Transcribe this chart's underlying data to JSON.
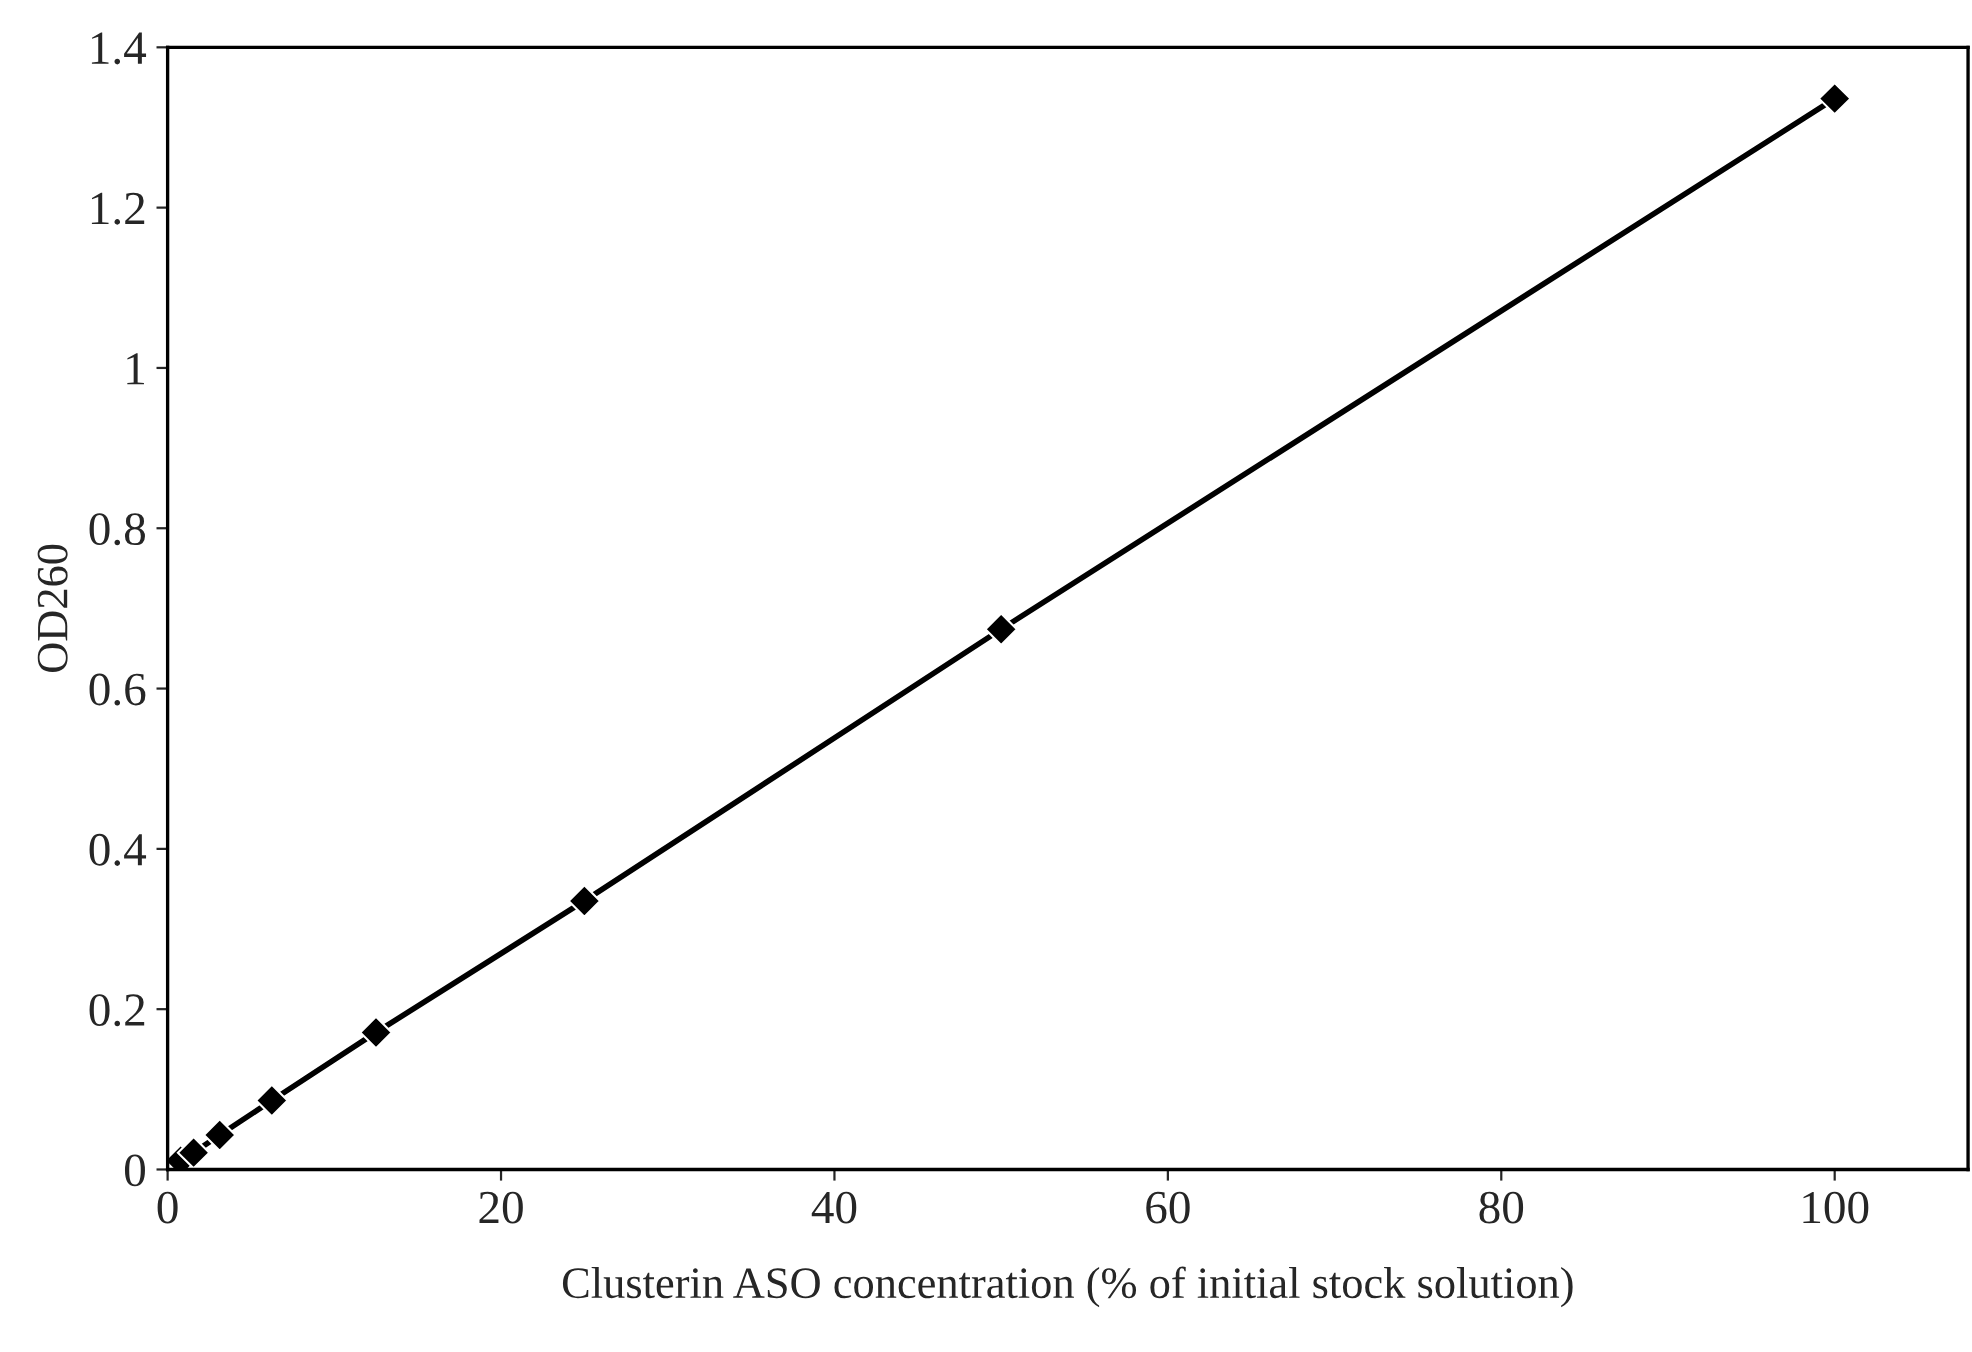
{
  "chart_data": {
    "type": "line",
    "xlabel": "Clusterin ASO concentration (% of initial stock solution)",
    "ylabel": "OD260",
    "x": [
      0.78,
      1.56,
      3.125,
      6.25,
      12.5,
      25,
      50,
      100
    ],
    "series": [
      {
        "color": "#000000",
        "values": [
          0.011,
          0.021,
          0.043,
          0.086,
          0.171,
          0.335,
          0.674,
          1.336
        ]
      }
    ],
    "xlim": [
      0,
      108
    ],
    "xticks": [
      0,
      20,
      40,
      60,
      80,
      100
    ],
    "ylim": [
      0,
      1.4
    ],
    "yticks": [
      0,
      0.2,
      0.4,
      0.6,
      0.8,
      1,
      1.2,
      1.4
    ],
    "marker": "diamond",
    "line_style": "solid",
    "grid": false,
    "legend": false
  }
}
